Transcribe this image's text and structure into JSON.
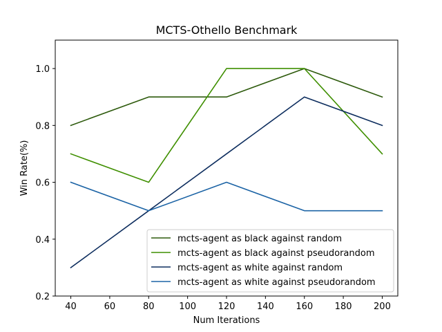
{
  "chart_data": {
    "type": "line",
    "title": "MCTS-Othello Benchmark",
    "xlabel": "Num Iterations",
    "ylabel": "Win Rate(%)",
    "x": [
      40,
      80,
      120,
      160,
      200
    ],
    "xlim": [
      32,
      208
    ],
    "ylim": [
      0.2,
      1.1
    ],
    "xticks": [
      40,
      60,
      80,
      100,
      120,
      140,
      160,
      180,
      200
    ],
    "yticks": [
      0.2,
      0.4,
      0.6,
      0.8,
      1.0
    ],
    "ytick_labels": [
      "0.2",
      "0.4",
      "0.6",
      "0.8",
      "1.0"
    ],
    "grid": false,
    "legend_position": "lower-right",
    "series": [
      {
        "name": "mcts-agent as black against random",
        "color": "#2d5a0c",
        "values": [
          0.8,
          0.9,
          0.9,
          1.0,
          0.9
        ]
      },
      {
        "name": "mcts-agent as black against pseudorandom",
        "color": "#3f8f00",
        "values": [
          0.7,
          0.6,
          1.0,
          1.0,
          0.7
        ]
      },
      {
        "name": "mcts-agent as white against random",
        "color": "#0d2d5e",
        "values": [
          0.3,
          0.5,
          0.7,
          0.9,
          0.8
        ]
      },
      {
        "name": "mcts-agent as white against pseudorandom",
        "color": "#1b63a5",
        "values": [
          0.6,
          0.5,
          0.6,
          0.5,
          0.5
        ]
      }
    ]
  }
}
